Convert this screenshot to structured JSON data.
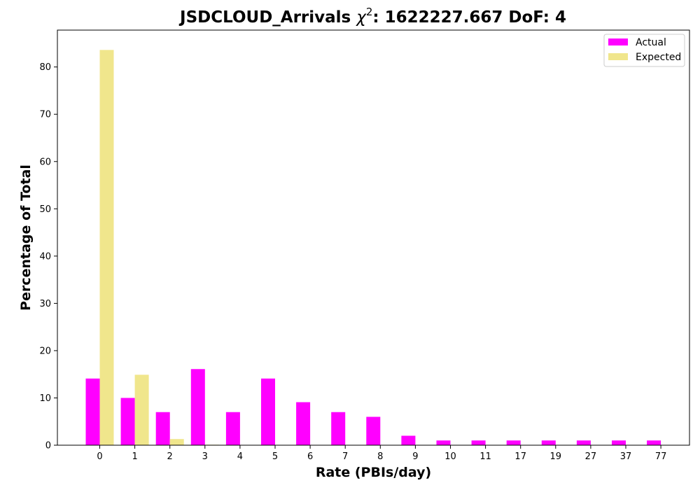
{
  "chart_data": {
    "type": "bar",
    "title_prefix": "JSDCLOUD_Arrivals ",
    "title_chi": "χ",
    "title_sup": "2",
    "title_suffix": ": 1622227.667 DoF: 4",
    "xlabel": "Rate (PBIs/day)",
    "ylabel": "Percentage of Total",
    "categories": [
      "0",
      "1",
      "2",
      "3",
      "4",
      "5",
      "6",
      "7",
      "8",
      "9",
      "10",
      "11",
      "17",
      "19",
      "27",
      "37",
      "77"
    ],
    "series": [
      {
        "name": "Actual",
        "color": "#ff00ff",
        "values": [
          14.1,
          10.0,
          7.0,
          16.1,
          7.0,
          14.1,
          9.1,
          7.0,
          6.0,
          2.0,
          1.0,
          1.0,
          1.0,
          1.0,
          1.0,
          1.0,
          1.0
        ]
      },
      {
        "name": "Expected",
        "color": "#f0e68c",
        "values": [
          83.6,
          14.9,
          1.3,
          0.1,
          0.0,
          0.0,
          0.0,
          0.0,
          0.0,
          0.0,
          0.0,
          0.0,
          0.0,
          0.0,
          0.0,
          0.0,
          0.0
        ]
      }
    ],
    "yticks": [
      "0",
      "10",
      "20",
      "30",
      "40",
      "50",
      "60",
      "70",
      "80"
    ],
    "ylim": [
      0,
      87.8
    ],
    "grid": false,
    "legend_position": "top-right"
  }
}
